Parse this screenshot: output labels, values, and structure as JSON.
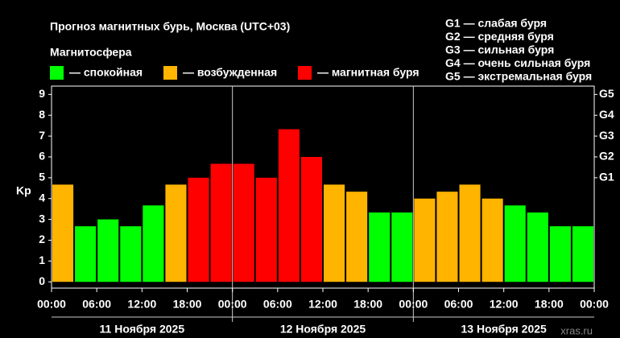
{
  "chart_data": {
    "type": "bar",
    "title": "Прогноз магнитных бурь, Москва (UTC+03)",
    "legend_title": "Магнитосфера",
    "legend": [
      {
        "name": "— спокойная",
        "color": "#00ff00"
      },
      {
        "name": "— возбужденная",
        "color": "#ffb400"
      },
      {
        "name": "— магнитная буря",
        "color": "#ff0000"
      }
    ],
    "storm_scale": [
      "G1 — слабая буря",
      "G2 — средняя буря",
      "G3 — сильная буря",
      "G4 — очень сильная буря",
      "G5 — экстремальная буря"
    ],
    "y_label": "Kp",
    "values": [
      4.67,
      2.67,
      3.0,
      2.67,
      3.67,
      4.67,
      5.0,
      5.67,
      5.67,
      5.0,
      7.33,
      6.0,
      4.67,
      4.33,
      3.33,
      3.33,
      4.0,
      4.33,
      4.67,
      4.0,
      3.67,
      3.33,
      2.67,
      2.67
    ],
    "colors": [
      "#ffb400",
      "#00ff00",
      "#00ff00",
      "#00ff00",
      "#00ff00",
      "#ffb400",
      "#ff0000",
      "#ff0000",
      "#ff0000",
      "#ff0000",
      "#ff0000",
      "#ff0000",
      "#ffb400",
      "#ffb400",
      "#00ff00",
      "#00ff00",
      "#ffb400",
      "#ffb400",
      "#ffb400",
      "#ffb400",
      "#00ff00",
      "#00ff00",
      "#00ff00",
      "#00ff00"
    ],
    "time_labels": [
      "00:00",
      "06:00",
      "12:00",
      "18:00",
      "00:00",
      "06:00",
      "12:00",
      "18:00",
      "00:00",
      "06:00",
      "12:00",
      "18:00",
      "00:00"
    ],
    "days": [
      "11 Ноября 2025",
      "12 Ноября 2025",
      "13 Ноября 2025"
    ],
    "ylim": [
      -0.3,
      9.4
    ],
    "yticks": [
      0,
      1,
      2,
      3,
      4,
      5,
      6,
      7,
      8,
      9
    ],
    "y2ticks": [
      {
        "value": 5,
        "label": "G1"
      },
      {
        "value": 6,
        "label": "G2"
      },
      {
        "value": 7,
        "label": "G3"
      },
      {
        "value": 8,
        "label": "G4"
      },
      {
        "value": 9,
        "label": "G5"
      }
    ],
    "source": "xras.ru"
  }
}
